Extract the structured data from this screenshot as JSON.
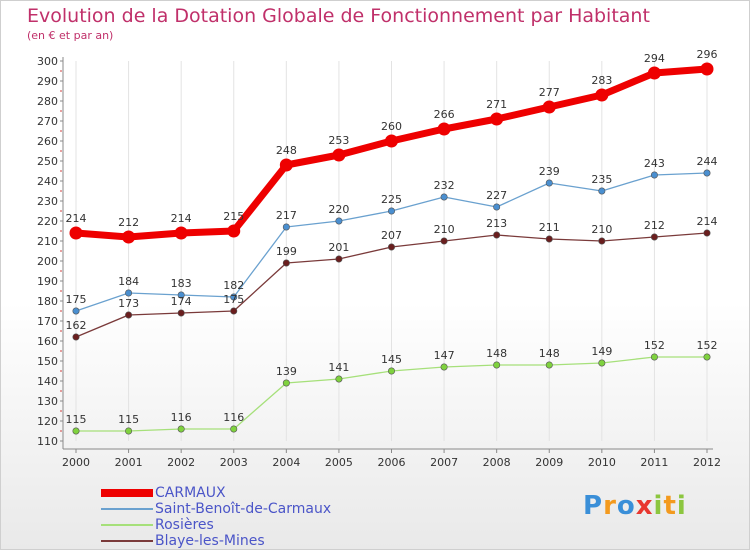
{
  "title": "Evolution de la Dotation Globale de Fonctionnement par Habitant",
  "subtitle": "(en € et par an)",
  "colors": {
    "title": "#c0306a",
    "axis": "#8a8a8a",
    "grid": "#e3e3e3",
    "ticks_red": "#d04040",
    "legend_text": "#4b55c8"
  },
  "chart_data": {
    "type": "line",
    "x": [
      "2000",
      "2001",
      "2002",
      "2003",
      "2004",
      "2005",
      "2006",
      "2007",
      "2008",
      "2009",
      "2010",
      "2011",
      "2012"
    ],
    "ylim": [
      110,
      300
    ],
    "yticks": [
      110,
      120,
      130,
      140,
      150,
      160,
      170,
      180,
      190,
      200,
      210,
      220,
      230,
      240,
      250,
      260,
      270,
      280,
      290,
      300
    ],
    "grid": true,
    "legend_position": "bottom-left",
    "series": [
      {
        "name": "CARMAUX",
        "color": "#ee0000",
        "emphasis": true,
        "values": [
          214,
          212,
          214,
          215,
          248,
          253,
          260,
          266,
          271,
          277,
          283,
          294,
          296
        ]
      },
      {
        "name": "Saint-Benoît-de-Carmaux",
        "color": "#6aa1cf",
        "marker": "#4a8fd0",
        "values": [
          175,
          184,
          183,
          182,
          217,
          220,
          225,
          232,
          227,
          239,
          235,
          243,
          244
        ]
      },
      {
        "name": "Rosières",
        "color": "#a6e07a",
        "marker": "#7fd23e",
        "values": [
          115,
          115,
          116,
          116,
          139,
          141,
          145,
          147,
          148,
          148,
          149,
          152,
          152
        ]
      },
      {
        "name": "Blaye-les-Mines",
        "color": "#7a3a3a",
        "marker": "#6a1e1e",
        "values": [
          162,
          173,
          174,
          175,
          199,
          201,
          207,
          210,
          213,
          211,
          210,
          212,
          214
        ]
      }
    ]
  },
  "logo": {
    "text": "Proxiti",
    "letters": [
      {
        "ch": "P",
        "color": "#3a8fd8"
      },
      {
        "ch": "r",
        "color": "#f39a1e"
      },
      {
        "ch": "o",
        "color": "#3a8fd8"
      },
      {
        "ch": "x",
        "color": "#e8372f"
      },
      {
        "ch": "i",
        "color": "#8cc63f"
      },
      {
        "ch": "t",
        "color": "#f39a1e"
      },
      {
        "ch": "i",
        "color": "#8cc63f"
      }
    ]
  }
}
